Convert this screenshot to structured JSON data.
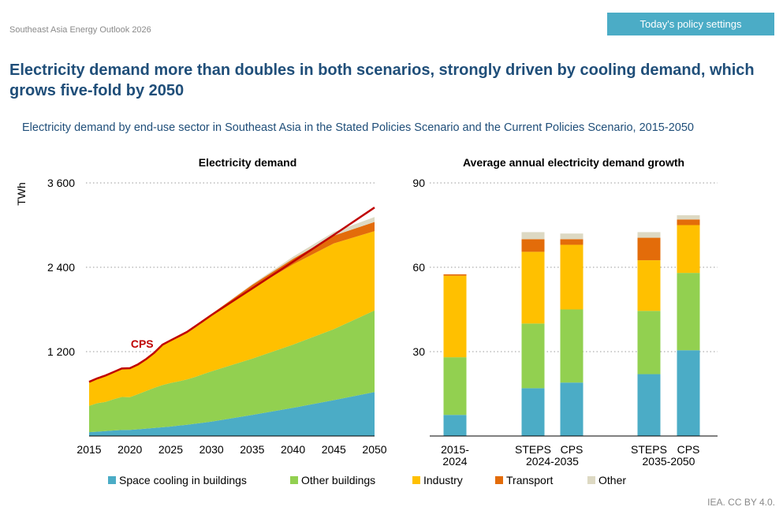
{
  "source_label": "Southeast Asia Energy Outlook 2026",
  "badge_label": "Today's policy settings",
  "headline": "Electricity demand more than doubles in both scenarios, strongly driven by cooling demand, which grows five-fold by 2050",
  "subtitle": "Electricity demand by end-use sector in Southeast Asia in the Stated Policies Scenario and the Current Policies Scenario, 2015-2050",
  "credit": "IEA. CC BY 4.0.",
  "colors": {
    "space_cooling": "#4bacc6",
    "other_buildings": "#92d050",
    "industry": "#ffc000",
    "transport": "#e36c0a",
    "other": "#ddd9c3",
    "cps_line": "#c00000",
    "grid": "#9a9a9a"
  },
  "legend": [
    {
      "label": "Space cooling in buildings",
      "color_key": "space_cooling"
    },
    {
      "label": "Other buildings",
      "color_key": "other_buildings"
    },
    {
      "label": "Industry",
      "color_key": "industry"
    },
    {
      "label": "Transport",
      "color_key": "transport"
    },
    {
      "label": "Other",
      "color_key": "other"
    }
  ],
  "chart_data": [
    {
      "type": "area",
      "title": "Electricity demand",
      "ylabel": "TWh",
      "xlabel": "",
      "xlim": [
        2015,
        2050
      ],
      "ylim": [
        0,
        3600
      ],
      "y_ticks": [
        1200,
        2400,
        3600
      ],
      "y_tick_labels": [
        "1 200",
        "2 400",
        "3 600"
      ],
      "x_ticks": [
        2015,
        2020,
        2025,
        2030,
        2035,
        2040,
        2045,
        2050
      ],
      "x_tick_labels": [
        "2015",
        "2020",
        "2025",
        "2030",
        "2035",
        "2040",
        "2045",
        "2050"
      ],
      "grid": true,
      "stacked": true,
      "x": [
        2015,
        2016,
        2017,
        2018,
        2019,
        2020,
        2021,
        2022,
        2023,
        2024,
        2025,
        2026,
        2027,
        2028,
        2029,
        2030,
        2035,
        2040,
        2045,
        2050
      ],
      "series": [
        {
          "name": "Space cooling in buildings",
          "color_key": "space_cooling",
          "values": [
            55,
            62,
            70,
            78,
            85,
            88,
            95,
            105,
            115,
            125,
            135,
            148,
            160,
            175,
            190,
            205,
            300,
            400,
            510,
            625
          ]
        },
        {
          "name": "Other buildings",
          "color_key": "other_buildings",
          "values": [
            375,
            405,
            415,
            445,
            470,
            465,
            500,
            535,
            570,
            600,
            620,
            630,
            645,
            665,
            690,
            715,
            800,
            900,
            1010,
            1160
          ]
        },
        {
          "name": "Industry",
          "color_key": "industry",
          "values": [
            335,
            345,
            370,
            380,
            390,
            402,
            415,
            445,
            485,
            565,
            595,
            625,
            660,
            700,
            745,
            790,
            1000,
            1140,
            1220,
            1130
          ]
        },
        {
          "name": "Transport",
          "color_key": "transport",
          "values": [
            5,
            5,
            5,
            5,
            6,
            5,
            6,
            6,
            7,
            8,
            10,
            12,
            15,
            18,
            22,
            26,
            50,
            80,
            110,
            130
          ]
        },
        {
          "name": "Other",
          "color_key": "other",
          "values": [
            0,
            0,
            0,
            0,
            0,
            0,
            0,
            0,
            0,
            0,
            0,
            0,
            0,
            0,
            0,
            0,
            10,
            30,
            50,
            70
          ]
        }
      ],
      "cps_line": {
        "label": "CPS",
        "x": [
          2015,
          2016,
          2017,
          2018,
          2019,
          2020,
          2021,
          2022,
          2023,
          2024,
          2025,
          2026,
          2027,
          2028,
          2029,
          2030,
          2035,
          2040,
          2045,
          2050
        ],
        "values": [
          770,
          820,
          860,
          910,
          960,
          965,
          1020,
          1095,
          1185,
          1300,
          1360,
          1420,
          1480,
          1560,
          1640,
          1720,
          2100,
          2480,
          2860,
          3250
        ]
      }
    },
    {
      "type": "bar",
      "title": "Average annual electricity demand growth",
      "ylabel": "",
      "xlabel": "",
      "ylim": [
        0,
        90
      ],
      "y_ticks": [
        30,
        60,
        90
      ],
      "y_tick_labels": [
        "30",
        "60",
        "90"
      ],
      "grid": true,
      "stacked": true,
      "categories": [
        "2015-2024",
        "STEPS 2024-2035",
        "CPS 2024-2035",
        "STEPS 2035-2050",
        "CPS 2035-2050"
      ],
      "bar_labels": [
        "2015-",
        "STEPS",
        "CPS",
        "STEPS",
        "CPS"
      ],
      "group_labels": [
        {
          "label": "2024",
          "bars": [
            0
          ]
        },
        {
          "label": "2024-2035",
          "bars": [
            1,
            2
          ]
        },
        {
          "label": "2035-2050",
          "bars": [
            3,
            4
          ]
        }
      ],
      "series": [
        {
          "name": "Space cooling in buildings",
          "color_key": "space_cooling",
          "values": [
            7.5,
            17,
            19,
            22,
            30.5
          ]
        },
        {
          "name": "Other buildings",
          "color_key": "other_buildings",
          "values": [
            20.5,
            23,
            26,
            22.5,
            27.5
          ]
        },
        {
          "name": "Industry",
          "color_key": "industry",
          "values": [
            29,
            25.5,
            23,
            18,
            17
          ]
        },
        {
          "name": "Transport",
          "color_key": "transport",
          "values": [
            0.5,
            4.5,
            2,
            8,
            2
          ]
        },
        {
          "name": "Other",
          "color_key": "other",
          "values": [
            0,
            2.5,
            2,
            2,
            1.5
          ]
        }
      ]
    }
  ]
}
